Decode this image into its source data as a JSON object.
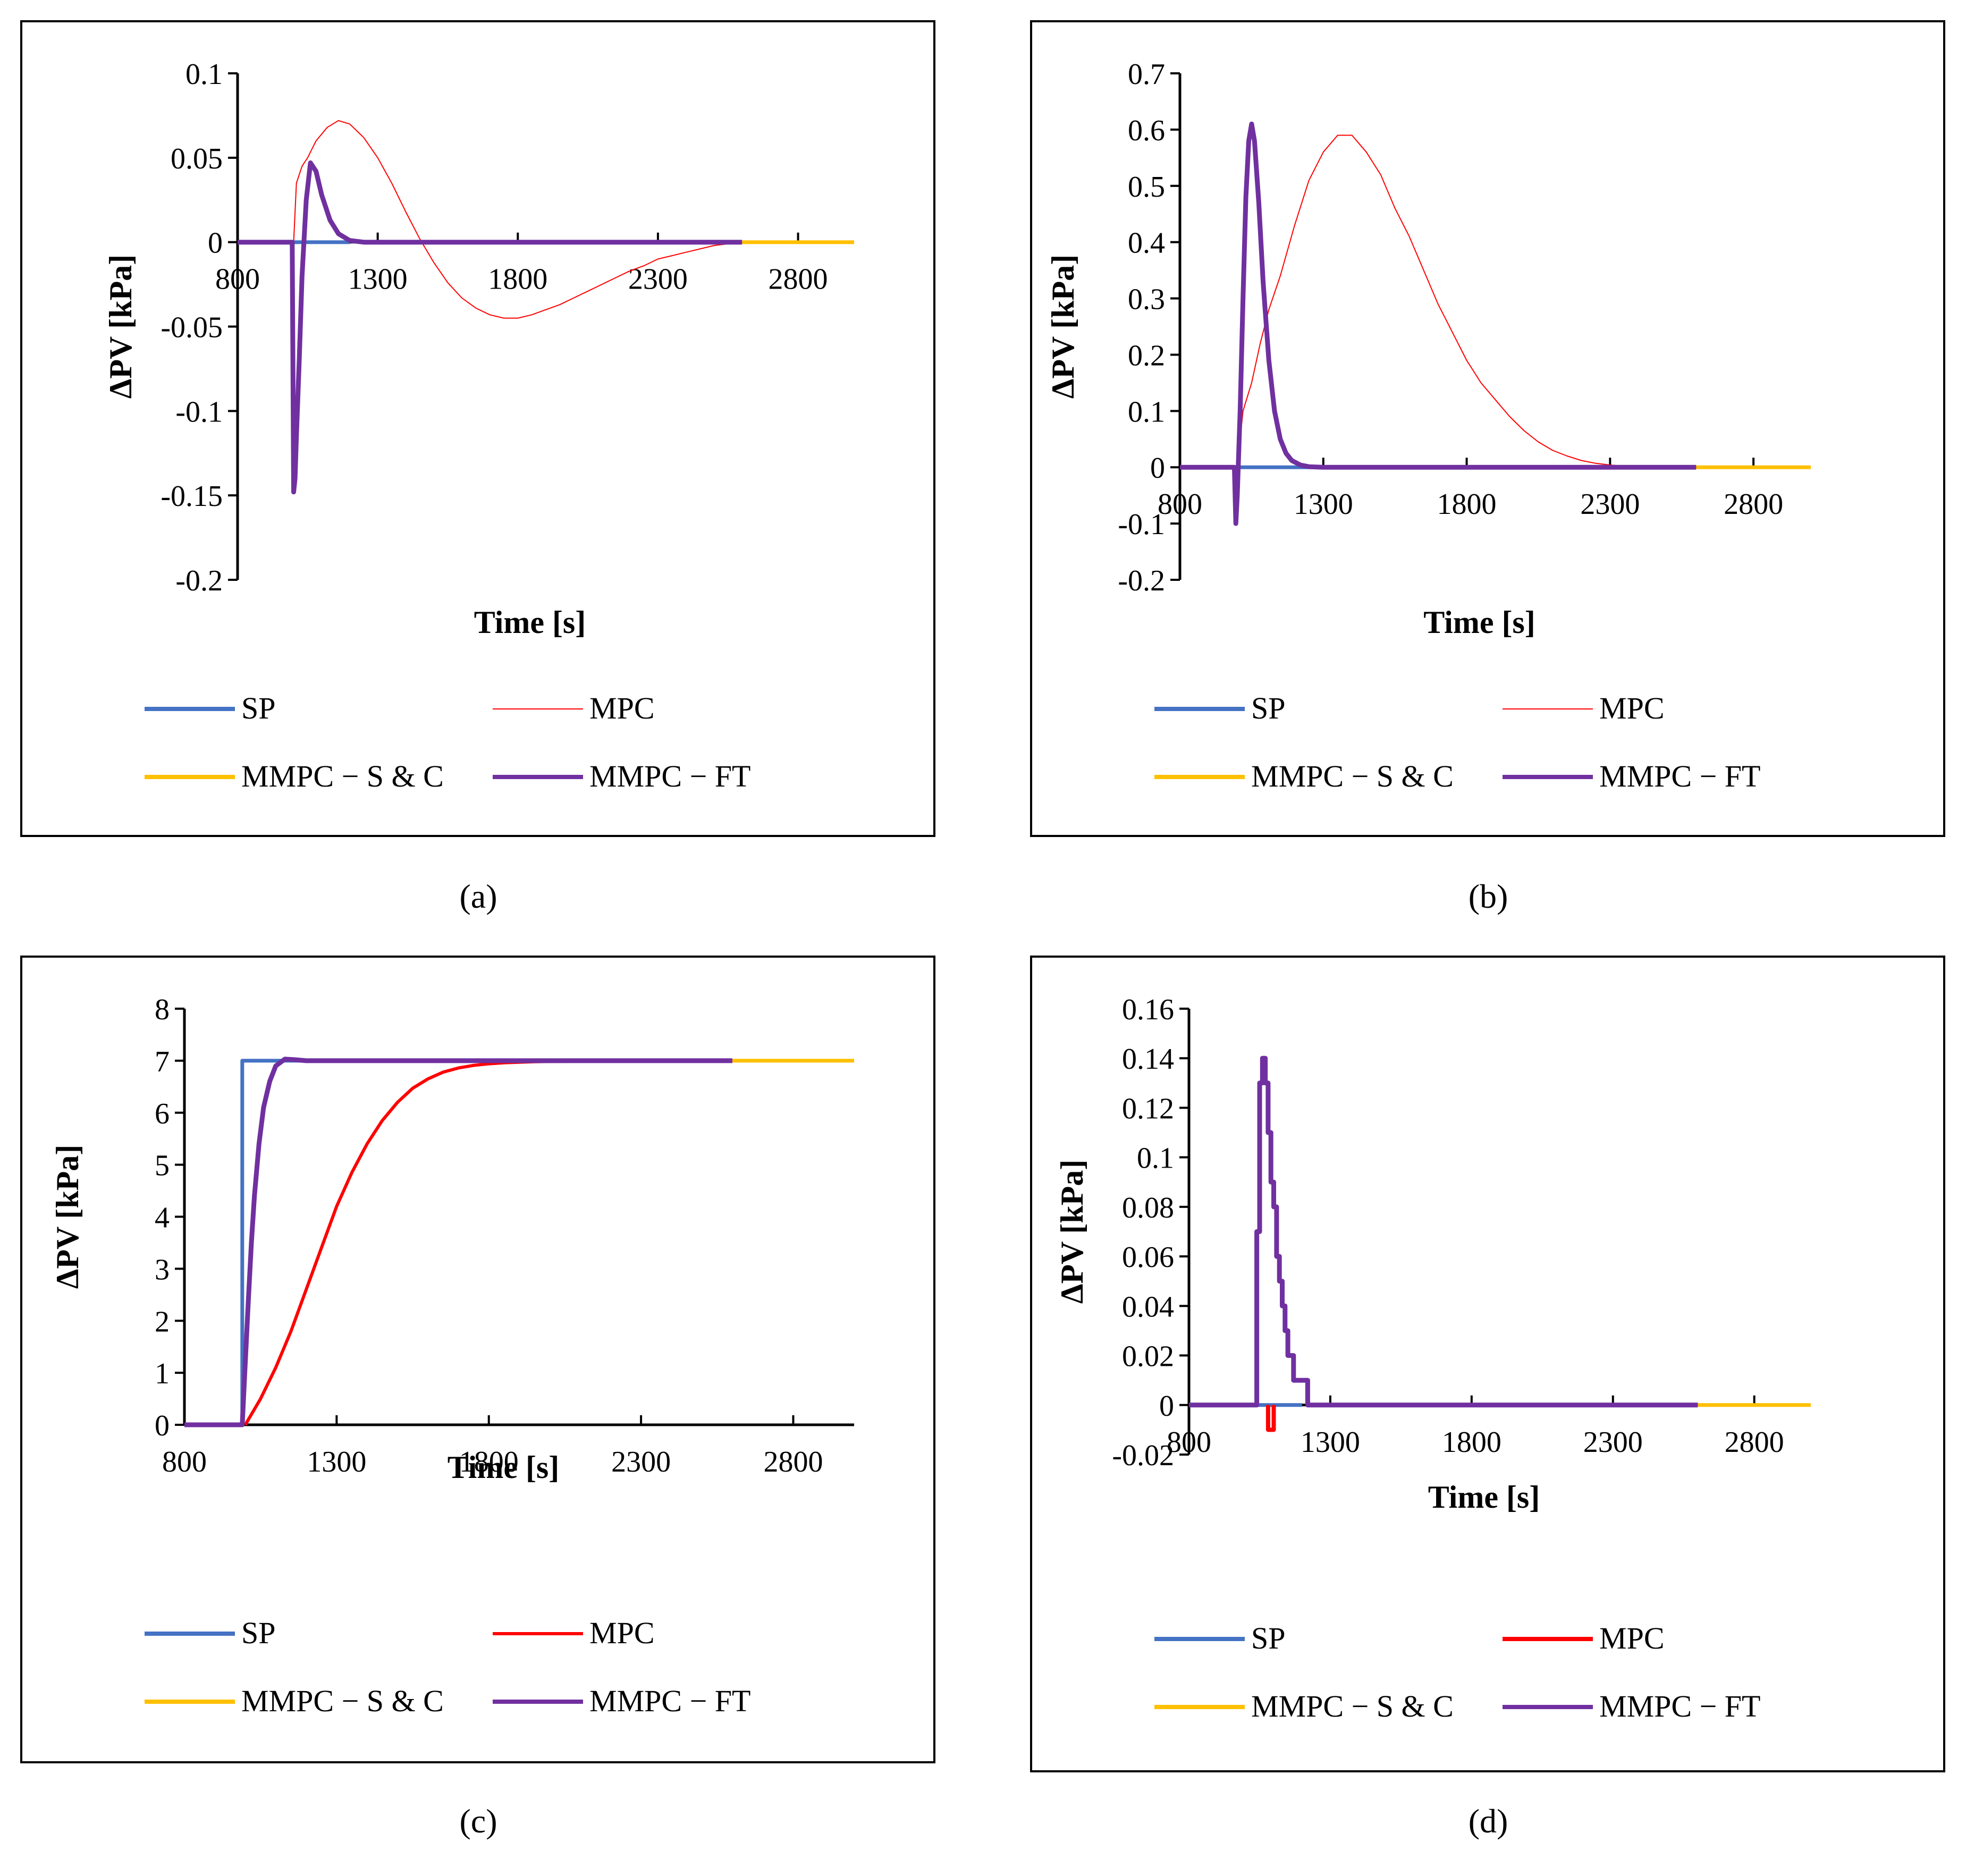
{
  "panels": [
    {
      "caption": "(a)",
      "ylabel": "ΔPV [kPa]",
      "xlabel": "Time [s]",
      "x_ticks": [
        "800",
        "1300",
        "1800",
        "2300",
        "2800"
      ],
      "y_ticks": [
        "0.1",
        "0.05",
        "0",
        "-0.05",
        "-0.1",
        "-0.15",
        "-0.2"
      ],
      "legend": [
        "SP",
        "MPC",
        "MMPC − S & C",
        "MMPC − FT"
      ]
    },
    {
      "caption": "(b)",
      "ylabel": "ΔPV [kPa]",
      "xlabel": "Time [s]",
      "x_ticks": [
        "800",
        "1300",
        "1800",
        "2300",
        "2800"
      ],
      "y_ticks": [
        "0.7",
        "0.6",
        "0.5",
        "0.4",
        "0.3",
        "0.2",
        "0.1",
        "0",
        "-0.1",
        "-0.2"
      ],
      "legend": [
        "SP",
        "MPC",
        "MMPC − S & C",
        "MMPC − FT"
      ]
    },
    {
      "caption": "(c)",
      "ylabel": "ΔPV [kPa]",
      "xlabel": "Time [s]",
      "x_ticks": [
        "800",
        "1300",
        "1800",
        "2300",
        "2800"
      ],
      "y_ticks": [
        "8",
        "7",
        "6",
        "5",
        "4",
        "3",
        "2",
        "1",
        "0"
      ],
      "legend": [
        "SP",
        "MPC",
        "MMPC − S & C",
        "MMPC − FT"
      ]
    },
    {
      "caption": "(d)",
      "ylabel": "ΔPV [kPa]",
      "xlabel": "Time [s]",
      "x_ticks": [
        "800",
        "1300",
        "1800",
        "2300",
        "2800"
      ],
      "y_ticks": [
        "0.16",
        "0.14",
        "0.12",
        "0.1",
        "0.08",
        "0.06",
        "0.04",
        "0.02",
        "0",
        "-0.02"
      ],
      "legend": [
        "SP",
        "MPC",
        "MMPC − S & C",
        "MMPC − FT"
      ]
    }
  ],
  "colors": {
    "SP": "#4472C4",
    "MPC": "#FF0000",
    "MMPC_SC": "#FFC000",
    "MMPC_FT": "#7030A0"
  },
  "chart_data": [
    {
      "type": "line",
      "xlim": [
        800,
        3000
      ],
      "ylim": [
        -0.2,
        0.1
      ],
      "series": [
        {
          "name": "SP",
          "x": [
            800,
            1200
          ],
          "y": [
            0,
            0
          ]
        },
        {
          "name": "MPC",
          "x": [
            1000,
            1010,
            1030,
            1050,
            1080,
            1120,
            1160,
            1200,
            1250,
            1300,
            1350,
            1400,
            1450,
            1500,
            1550,
            1600,
            1650,
            1700,
            1750,
            1800,
            1850,
            1900,
            1950,
            2000,
            2050,
            2100,
            2150,
            2200,
            2250,
            2300,
            2350,
            2400,
            2450,
            2500,
            2550,
            2600
          ],
          "y": [
            0,
            0.035,
            0.045,
            0.05,
            0.06,
            0.068,
            0.072,
            0.07,
            0.062,
            0.05,
            0.035,
            0.018,
            0.002,
            -0.012,
            -0.024,
            -0.033,
            -0.039,
            -0.043,
            -0.045,
            -0.045,
            -0.043,
            -0.04,
            -0.037,
            -0.033,
            -0.029,
            -0.025,
            -0.021,
            -0.017,
            -0.014,
            -0.01,
            -0.008,
            -0.006,
            -0.004,
            -0.002,
            -0.001,
            0
          ]
        },
        {
          "name": "MMPC − S & C",
          "x": [
            2600,
            3000
          ],
          "y": [
            0,
            0
          ]
        },
        {
          "name": "MMPC − FT",
          "x": [
            800,
            995,
            1000,
            1005,
            1010,
            1020,
            1030,
            1045,
            1060,
            1080,
            1100,
            1130,
            1160,
            1200,
            1250,
            1300,
            1500,
            2000,
            2600
          ],
          "y": [
            0,
            0,
            -0.148,
            -0.14,
            -0.115,
            -0.07,
            -0.02,
            0.025,
            0.047,
            0.042,
            0.028,
            0.013,
            0.005,
            0.001,
            0,
            0,
            0,
            0,
            0
          ]
        }
      ]
    },
    {
      "type": "line",
      "xlim": [
        800,
        3000
      ],
      "ylim": [
        -0.2,
        0.7
      ],
      "series": [
        {
          "name": "SP",
          "x": [
            800,
            1250
          ],
          "y": [
            0,
            0
          ]
        },
        {
          "name": "MPC",
          "x": [
            1000,
            1020,
            1050,
            1080,
            1110,
            1150,
            1200,
            1250,
            1300,
            1350,
            1400,
            1450,
            1500,
            1550,
            1600,
            1650,
            1700,
            1750,
            1800,
            1850,
            1900,
            1950,
            2000,
            2050,
            2100,
            2150,
            2200,
            2250,
            2300,
            2350,
            2400,
            2450,
            2500,
            2550,
            2600
          ],
          "y": [
            0,
            0.1,
            0.15,
            0.22,
            0.28,
            0.34,
            0.43,
            0.51,
            0.56,
            0.59,
            0.59,
            0.56,
            0.52,
            0.46,
            0.41,
            0.35,
            0.29,
            0.24,
            0.19,
            0.15,
            0.12,
            0.09,
            0.065,
            0.045,
            0.03,
            0.02,
            0.012,
            0.007,
            0.004,
            0.002,
            0.001,
            0,
            0,
            0,
            0
          ]
        },
        {
          "name": "MMPC − S & C",
          "x": [
            2600,
            3000
          ],
          "y": [
            0,
            0
          ]
        },
        {
          "name": "MMPC − FT",
          "x": [
            800,
            990,
            995,
            1000,
            1010,
            1020,
            1030,
            1040,
            1050,
            1060,
            1075,
            1090,
            1110,
            1130,
            1150,
            1170,
            1190,
            1220,
            1250,
            1300,
            1600,
            2600
          ],
          "y": [
            0,
            0,
            -0.1,
            -0.05,
            0.1,
            0.3,
            0.48,
            0.58,
            0.61,
            0.58,
            0.47,
            0.33,
            0.19,
            0.1,
            0.05,
            0.025,
            0.012,
            0.004,
            0.001,
            0,
            0,
            0
          ]
        }
      ]
    },
    {
      "type": "line",
      "xlim": [
        800,
        3000
      ],
      "ylim": [
        0,
        8
      ],
      "series": [
        {
          "name": "SP",
          "x": [
            800,
            990,
            990,
            2600
          ],
          "y": [
            0,
            0,
            7,
            7
          ]
        },
        {
          "name": "MPC",
          "x": [
            1000,
            1050,
            1100,
            1150,
            1200,
            1250,
            1300,
            1350,
            1400,
            1450,
            1500,
            1550,
            1600,
            1650,
            1700,
            1750,
            1800,
            1850,
            1900,
            1950,
            2000,
            2100,
            2200,
            2300,
            2400,
            2500,
            2600
          ],
          "y": [
            0,
            0.5,
            1.1,
            1.8,
            2.6,
            3.4,
            4.2,
            4.85,
            5.4,
            5.85,
            6.2,
            6.47,
            6.65,
            6.78,
            6.86,
            6.91,
            6.94,
            6.96,
            6.97,
            6.98,
            6.985,
            6.99,
            6.995,
            7,
            7,
            7,
            7
          ]
        },
        {
          "name": "MMPC − S & C",
          "x": [
            2600,
            3000
          ],
          "y": [
            7,
            7
          ]
        },
        {
          "name": "MMPC − FT",
          "x": [
            800,
            990,
            1000,
            1010,
            1020,
            1030,
            1045,
            1060,
            1080,
            1100,
            1130,
            1160,
            1200,
            1300,
            1500,
            2600
          ],
          "y": [
            0,
            0,
            1.2,
            2.4,
            3.5,
            4.4,
            5.4,
            6.1,
            6.6,
            6.9,
            7.03,
            7.02,
            7.0,
            7.0,
            7.0,
            7.0
          ]
        }
      ]
    },
    {
      "type": "line",
      "xlim": [
        800,
        3000
      ],
      "ylim": [
        -0.02,
        0.16
      ],
      "series": [
        {
          "name": "SP",
          "x": [
            800,
            1200
          ],
          "y": [
            0,
            0
          ]
        },
        {
          "name": "MPC",
          "x": [
            1080,
            1080,
            1100,
            1100
          ],
          "y": [
            0,
            -0.01,
            -0.01,
            0
          ]
        },
        {
          "name": "MMPC − S & C",
          "x": [
            2600,
            3000
          ],
          "y": [
            0,
            0
          ]
        },
        {
          "name": "MMPC − FT",
          "x": [
            800,
            1040,
            1040,
            1050,
            1050,
            1060,
            1060,
            1070,
            1070,
            1080,
            1080,
            1090,
            1090,
            1100,
            1100,
            1110,
            1110,
            1120,
            1120,
            1130,
            1130,
            1140,
            1140,
            1150,
            1150,
            1160,
            1160,
            1170,
            1170,
            1180,
            1180,
            1200,
            1200,
            1220,
            1220,
            2600
          ],
          "y": [
            0,
            0,
            0.07,
            0.07,
            0.13,
            0.13,
            0.14,
            0.14,
            0.13,
            0.13,
            0.11,
            0.11,
            0.09,
            0.09,
            0.08,
            0.08,
            0.06,
            0.06,
            0.05,
            0.05,
            0.04,
            0.04,
            0.03,
            0.03,
            0.02,
            0.02,
            0.02,
            0.02,
            0.01,
            0.01,
            0.01,
            0.01,
            0.01,
            0.01,
            0,
            0
          ]
        }
      ]
    }
  ]
}
